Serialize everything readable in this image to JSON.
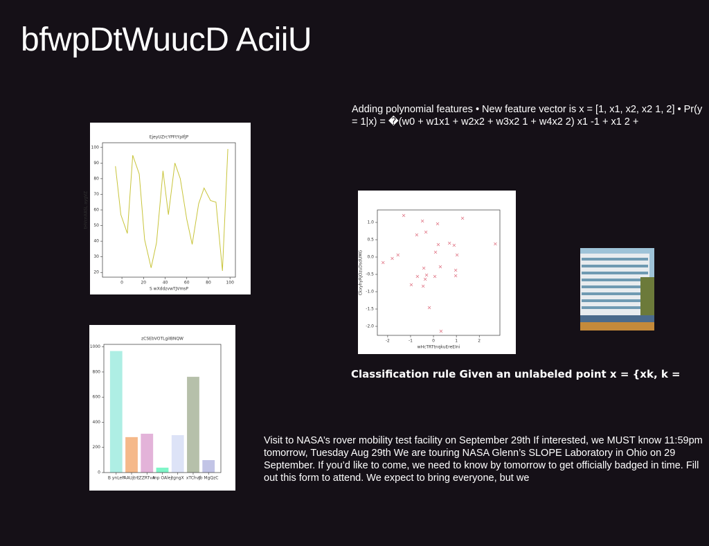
{
  "title": "bfwpDtWuucD AciiU",
  "text_blocks": [
    "Adding polynomial features • New feature vector is x = [1, x1, x2, x2 1, 2] • Pr(y = 1|x) = �(w0 + w1x1 + w2x2 + w3x2 1 + w4x2 2) x1 -1 + x1 2 +",
    "Classification rule Given an unlabeled point x = {xk, k =",
    "Visit to NASA’s rover mobility test facility on September 29th If interested, we MUST know 11:59pm tomorrow, Tuesday Aug 29th We are touring NASA Glenn’s SLOPE Laboratory in Ohio on 29 September. If you’d like to come, we need to know by tomorrow to get officially badged in time. Fill out this form to attend. We expect to bring everyone, but we"
  ],
  "chart_data": [
    {
      "type": "line",
      "title": "EjeyUZrcYPFtYpIfJP",
      "x_label": "S wXddzvwTJVmsP",
      "y_label": "tHVcnXASL aygVZ",
      "x": [
        -6,
        -1,
        5,
        10,
        16,
        21,
        27,
        32,
        38,
        43,
        49,
        54,
        60,
        65,
        71,
        76,
        82,
        87,
        93,
        98
      ],
      "values": [
        88,
        57,
        45,
        95,
        83,
        41,
        23,
        39,
        85,
        57,
        90,
        80,
        54,
        38,
        64,
        74,
        66,
        65,
        21,
        99
      ],
      "color": "#c8c43a",
      "xlim": [
        -18,
        105
      ],
      "ylim": [
        17,
        103
      ],
      "xticks": [
        0,
        20,
        40,
        60,
        80,
        100
      ],
      "yticks": [
        20,
        30,
        40,
        50,
        60,
        70,
        80,
        90,
        100
      ]
    },
    {
      "type": "scatter",
      "x_label": "wHcTRTtnqkuEreEIni",
      "y_label": "CkxyhyRjOzuDsdUMG",
      "x": [
        -2.2,
        -1.8,
        -1.55,
        -1.3,
        -0.97,
        -0.73,
        -0.7,
        -0.48,
        -0.42,
        -0.45,
        -0.36,
        -0.33,
        -0.3,
        -0.18,
        0.06,
        0.09,
        0.18,
        0.21,
        0.3,
        0.33,
        0.7,
        0.9,
        0.97,
        0.97,
        1.03,
        1.27,
        2.7
      ],
      "values": [
        -0.16,
        -0.04,
        0.06,
        1.2,
        -0.8,
        0.64,
        -0.56,
        1.04,
        -0.32,
        -0.84,
        -0.64,
        0.72,
        -0.52,
        -1.46,
        -0.56,
        0.14,
        0.96,
        0.36,
        -0.28,
        -2.14,
        0.4,
        0.34,
        -0.38,
        -0.54,
        0.06,
        1.12,
        0.38
      ],
      "color": "#e07585",
      "xlim": [
        -2.45,
        2.9
      ],
      "ylim": [
        -2.26,
        1.36
      ],
      "xticks": [
        -2,
        -1,
        0,
        1,
        2
      ],
      "yticks": [
        {
          "value": -2,
          "label": "-2.0"
        },
        -1.5,
        {
          "value": -1,
          "label": "-1.0"
        },
        -0.5,
        {
          "value": 0,
          "label": "0.0"
        },
        0.5,
        {
          "value": 1,
          "label": "1.0"
        }
      ]
    },
    {
      "type": "bar",
      "title": "zCSEbVOTLgiIBNQW",
      "categories": [
        "B ynLeP",
        "AAUjtrE",
        "ZZRTvA",
        "mp OAlej",
        "tgngX",
        "xTChvJ",
        "Ib MgQzC"
      ],
      "values": [
        967,
        282,
        309,
        39,
        298,
        762,
        99
      ],
      "colors": [
        "#aeeee4",
        "#f5b98a",
        "#e3b3d9",
        "#7ff5c8",
        "#dde3f7",
        "#b6c0aa",
        "#c2c4e6"
      ],
      "ylim": [
        0,
        1020
      ],
      "yticks": [
        0,
        200,
        400,
        600,
        800,
        1000
      ]
    }
  ]
}
